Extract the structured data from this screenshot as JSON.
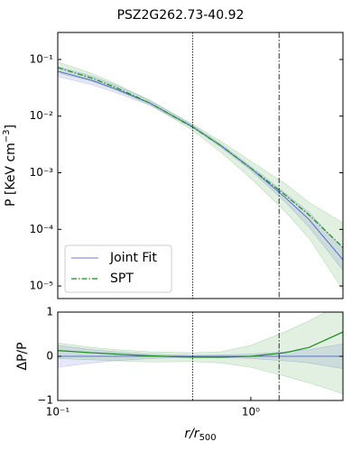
{
  "chart_data": [
    {
      "type": "line",
      "title": "PSZ2G262.73-40.92",
      "ylabel": {
        "text": "P [KeV cm",
        "sup": "−3",
        "end": "]"
      },
      "xlog": true,
      "ylog": true,
      "xlim": [
        0.1,
        3
      ],
      "ylim": [
        6e-06,
        0.3
      ],
      "yticks": [
        {
          "value": 0.1,
          "label": "10⁻¹"
        },
        {
          "value": 0.01,
          "label": "10⁻²"
        },
        {
          "value": 0.001,
          "label": "10⁻³"
        },
        {
          "value": 0.0001,
          "label": "10⁻⁴"
        },
        {
          "value": 1e-05,
          "label": "10⁻⁵"
        }
      ],
      "vlines": [
        {
          "value": 0.5,
          "style": "dotted"
        },
        {
          "value": 1.4,
          "style": "dashdot"
        }
      ],
      "legend": "lower left",
      "x": [
        0.1,
        0.15,
        0.2,
        0.3,
        0.5,
        0.7,
        1.0,
        1.5,
        2.0,
        3.0
      ],
      "series": [
        {
          "name": "Joint Fit",
          "color": "#3a4fd0",
          "style": "solid",
          "values": [
            0.062,
            0.043,
            0.03,
            0.017,
            0.0065,
            0.003,
            0.0012,
            0.00037,
            0.00015,
            2.9e-05
          ],
          "band_lower": [
            0.05,
            0.036,
            0.026,
            0.0155,
            0.0062,
            0.0028,
            0.0011,
            0.00031,
            0.00011,
            1.9e-05
          ],
          "band_upper": [
            0.075,
            0.051,
            0.035,
            0.019,
            0.0069,
            0.0032,
            0.0013,
            0.00044,
            0.0002,
            4.5e-05
          ]
        },
        {
          "name": "SPT",
          "color": "#1a8a1a",
          "style": "dashdot",
          "values": [
            0.072,
            0.047,
            0.032,
            0.017,
            0.0064,
            0.003,
            0.0012,
            0.00041,
            0.00018,
            4.8e-05
          ],
          "band_lower": [
            0.058,
            0.041,
            0.029,
            0.016,
            0.0056,
            0.0023,
            0.0008,
            0.00021,
            7e-05,
            8.5e-06
          ],
          "band_upper": [
            0.09,
            0.057,
            0.037,
            0.019,
            0.0072,
            0.0036,
            0.0016,
            0.00065,
            0.0003,
            0.00013
          ]
        }
      ]
    },
    {
      "type": "line",
      "ylabel": {
        "text": "ΔP/P"
      },
      "xlabel": {
        "text": "r/r",
        "sub": "500"
      },
      "xlog": true,
      "ylog": false,
      "xlim": [
        0.1,
        3
      ],
      "ylim": [
        -1,
        1
      ],
      "xticks": [
        {
          "value": 0.1,
          "label": "10⁻¹"
        },
        {
          "value": 1,
          "label": "10⁰"
        }
      ],
      "yticks": [
        {
          "value": -1,
          "label": "−1"
        },
        0,
        1
      ],
      "vlines": [
        {
          "value": 0.5,
          "style": "dotted"
        },
        {
          "value": 1.4,
          "style": "dashdot"
        }
      ],
      "x": [
        0.1,
        0.15,
        0.2,
        0.3,
        0.5,
        0.7,
        1.0,
        1.5,
        2.0,
        3.0
      ],
      "series": [
        {
          "color": "#3a4fd0",
          "style": "solid",
          "values": [
            0,
            0,
            0,
            0,
            0,
            0,
            0,
            0,
            0,
            0
          ],
          "band_lower": [
            -0.25,
            -0.15,
            -0.1,
            -0.05,
            -0.02,
            -0.03,
            -0.05,
            -0.1,
            -0.15,
            -0.28
          ],
          "band_upper": [
            0.25,
            0.15,
            0.1,
            0.05,
            0.02,
            0.03,
            0.05,
            0.1,
            0.15,
            0.28
          ]
        },
        {
          "color": "#1a8a1a",
          "style": "solid",
          "values": [
            0.13,
            0.08,
            0.05,
            0.01,
            -0.02,
            -0.02,
            0.0,
            0.08,
            0.2,
            0.55
          ],
          "band_lower": [
            -0.05,
            -0.08,
            -0.1,
            -0.13,
            -0.12,
            -0.15,
            -0.25,
            -0.45,
            -0.6,
            -0.85
          ],
          "band_upper": [
            0.3,
            0.2,
            0.15,
            0.1,
            0.08,
            0.1,
            0.25,
            0.55,
            0.8,
            1.2
          ]
        }
      ]
    }
  ]
}
